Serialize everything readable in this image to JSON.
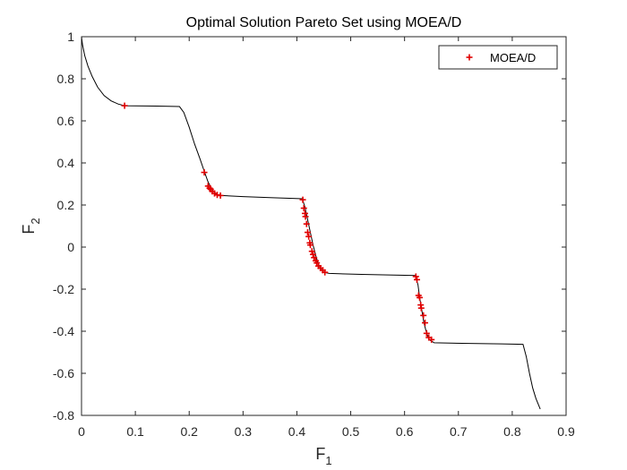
{
  "chart_data": {
    "type": "scatter",
    "title": "Optimal Solution Pareto Set using MOEA/D",
    "xlabel": {
      "base": "F",
      "sub": "1"
    },
    "ylabel": {
      "base": "F",
      "sub": "2"
    },
    "xlim": [
      0,
      0.9
    ],
    "ylim": [
      -0.8,
      1
    ],
    "xticks": [
      0,
      0.1,
      0.2,
      0.3,
      0.4,
      0.5,
      0.6,
      0.7,
      0.8,
      0.9
    ],
    "xtick_labels": [
      "0",
      "0.1",
      "0.2",
      "0.3",
      "0.4",
      "0.5",
      "0.6",
      "0.7",
      "0.8",
      "0.9"
    ],
    "yticks": [
      -0.8,
      -0.6,
      -0.4,
      -0.2,
      0,
      0.2,
      0.4,
      0.6,
      0.8,
      1
    ],
    "ytick_labels": [
      "-0.8",
      "-0.6",
      "-0.4",
      "-0.2",
      "0",
      "0.2",
      "0.4",
      "0.6",
      "0.8",
      "1"
    ],
    "grid": false,
    "legend": {
      "position": "top-right",
      "entries": [
        "MOEA/D"
      ]
    },
    "colors": {
      "marker": "#e00000",
      "front": "#000000",
      "axis": "#262626"
    },
    "true_front": [
      [
        0.0,
        1.0
      ],
      [
        0.002,
        0.96
      ],
      [
        0.006,
        0.91
      ],
      [
        0.012,
        0.86
      ],
      [
        0.02,
        0.81
      ],
      [
        0.03,
        0.76
      ],
      [
        0.042,
        0.72
      ],
      [
        0.055,
        0.695
      ],
      [
        0.068,
        0.68
      ],
      [
        0.08,
        0.672
      ],
      [
        0.1,
        0.671
      ],
      [
        0.14,
        0.67
      ],
      [
        0.182,
        0.668
      ],
      [
        0.19,
        0.64
      ],
      [
        0.2,
        0.57
      ],
      [
        0.21,
        0.49
      ],
      [
        0.22,
        0.42
      ],
      [
        0.228,
        0.36
      ],
      [
        0.235,
        0.31
      ],
      [
        0.24,
        0.285
      ],
      [
        0.245,
        0.265
      ],
      [
        0.252,
        0.25
      ],
      [
        0.26,
        0.245
      ],
      [
        0.3,
        0.24
      ],
      [
        0.35,
        0.235
      ],
      [
        0.41,
        0.23
      ],
      [
        0.415,
        0.19
      ],
      [
        0.42,
        0.13
      ],
      [
        0.425,
        0.07
      ],
      [
        0.43,
        0.01
      ],
      [
        0.435,
        -0.04
      ],
      [
        0.44,
        -0.08
      ],
      [
        0.445,
        -0.105
      ],
      [
        0.45,
        -0.12
      ],
      [
        0.46,
        -0.125
      ],
      [
        0.52,
        -0.13
      ],
      [
        0.58,
        -0.133
      ],
      [
        0.62,
        -0.135
      ],
      [
        0.625,
        -0.18
      ],
      [
        0.628,
        -0.24
      ],
      [
        0.632,
        -0.3
      ],
      [
        0.636,
        -0.36
      ],
      [
        0.641,
        -0.41
      ],
      [
        0.646,
        -0.44
      ],
      [
        0.655,
        -0.455
      ],
      [
        0.72,
        -0.458
      ],
      [
        0.78,
        -0.46
      ],
      [
        0.82,
        -0.462
      ],
      [
        0.826,
        -0.52
      ],
      [
        0.832,
        -0.6
      ],
      [
        0.838,
        -0.67
      ],
      [
        0.844,
        -0.72
      ],
      [
        0.852,
        -0.77
      ]
    ],
    "series": [
      {
        "name": "MOEA/D",
        "points": [
          [
            0.08,
            0.672
          ],
          [
            0.228,
            0.355
          ],
          [
            0.235,
            0.29
          ],
          [
            0.238,
            0.28
          ],
          [
            0.24,
            0.275
          ],
          [
            0.243,
            0.265
          ],
          [
            0.247,
            0.255
          ],
          [
            0.252,
            0.248
          ],
          [
            0.258,
            0.245
          ],
          [
            0.411,
            0.225
          ],
          [
            0.413,
            0.185
          ],
          [
            0.415,
            0.16
          ],
          [
            0.416,
            0.145
          ],
          [
            0.418,
            0.11
          ],
          [
            0.42,
            0.07
          ],
          [
            0.422,
            0.05
          ],
          [
            0.424,
            0.02
          ],
          [
            0.425,
            0.01
          ],
          [
            0.428,
            -0.02
          ],
          [
            0.43,
            -0.035
          ],
          [
            0.432,
            -0.05
          ],
          [
            0.435,
            -0.065
          ],
          [
            0.437,
            -0.075
          ],
          [
            0.44,
            -0.09
          ],
          [
            0.444,
            -0.1
          ],
          [
            0.448,
            -0.11
          ],
          [
            0.452,
            -0.12
          ],
          [
            0.621,
            -0.14
          ],
          [
            0.623,
            -0.155
          ],
          [
            0.626,
            -0.23
          ],
          [
            0.628,
            -0.24
          ],
          [
            0.63,
            -0.275
          ],
          [
            0.631,
            -0.29
          ],
          [
            0.635,
            -0.325
          ],
          [
            0.638,
            -0.36
          ],
          [
            0.641,
            -0.41
          ],
          [
            0.645,
            -0.43
          ],
          [
            0.65,
            -0.44
          ]
        ]
      }
    ]
  }
}
